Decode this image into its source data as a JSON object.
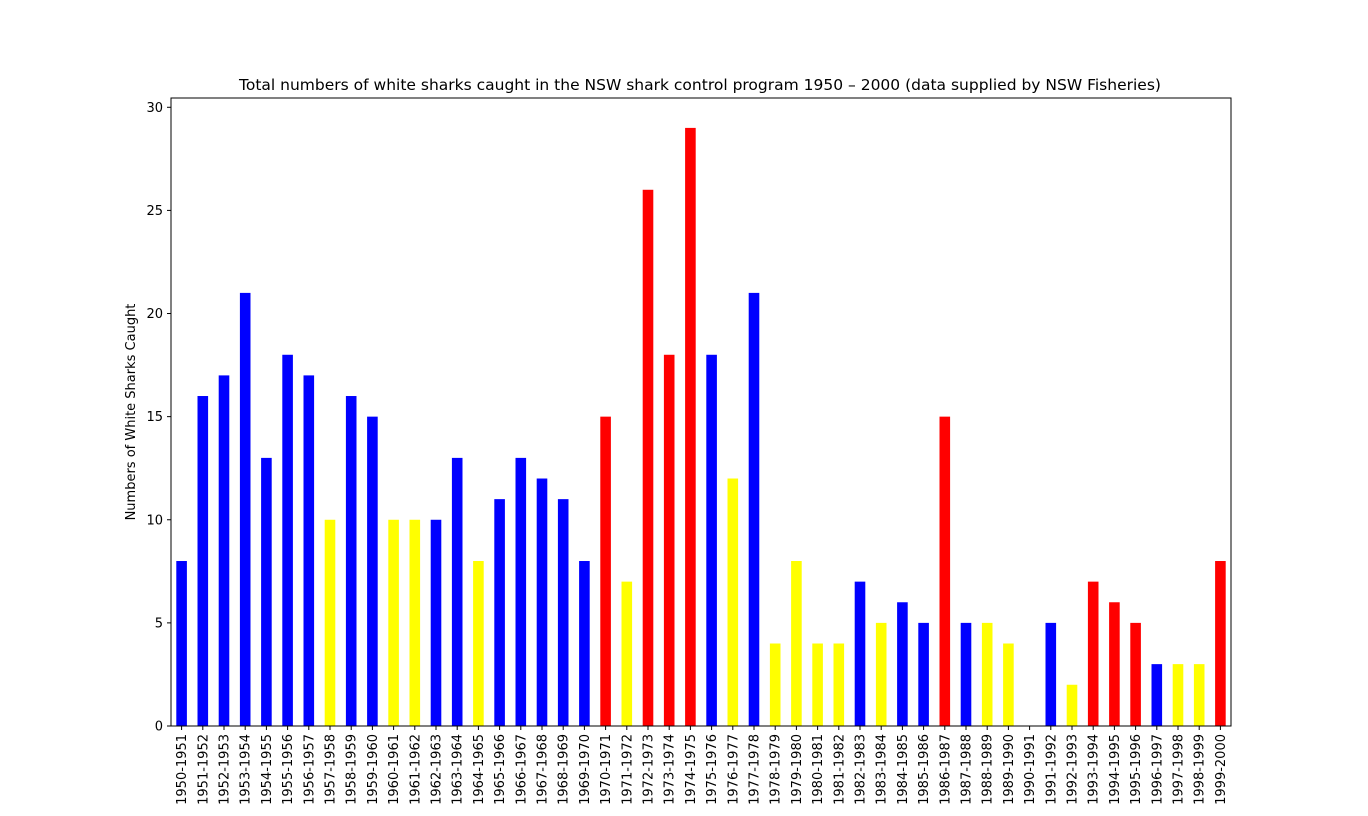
{
  "chart_data": {
    "type": "bar",
    "title": "Total numbers of white sharks caught in the NSW shark control program 1950 – 2000 (data supplied by NSW Fisheries)",
    "xlabel": "",
    "ylabel": "Numbers of White Sharks Caught",
    "ylim": [
      0,
      30.45
    ],
    "yticks": [
      "0",
      "5",
      "10",
      "15",
      "20",
      "25",
      "30"
    ],
    "grid": false,
    "categories": [
      "1950-1951",
      "1951-1952",
      "1952-1953",
      "1953-1954",
      "1954-1955",
      "1955-1956",
      "1956-1957",
      "1957-1958",
      "1958-1959",
      "1959-1960",
      "1960-1961",
      "1961-1962",
      "1962-1963",
      "1963-1964",
      "1964-1965",
      "1965-1966",
      "1966-1967",
      "1967-1968",
      "1968-1969",
      "1969-1970",
      "1970-1971",
      "1971-1972",
      "1972-1973",
      "1973-1974",
      "1974-1975",
      "1975-1976",
      "1976-1977",
      "1977-1978",
      "1978-1979",
      "1979-1980",
      "1980-1981",
      "1981-1982",
      "1982-1983",
      "1983-1984",
      "1984-1985",
      "1985-1986",
      "1986-1987",
      "1987-1988",
      "1988-1989",
      "1989-1990",
      "1990-1991",
      "1991-1992",
      "1992-1993",
      "1993-1994",
      "1994-1995",
      "1995-1996",
      "1996-1997",
      "1997-1998",
      "1998-1999",
      "1999-2000"
    ],
    "values": [
      8,
      16,
      17,
      21,
      13,
      18,
      17,
      10,
      16,
      15,
      10,
      10,
      10,
      13,
      8,
      11,
      13,
      12,
      11,
      8,
      15,
      7,
      26,
      18,
      29,
      18,
      12,
      21,
      4,
      8,
      4,
      4,
      7,
      5,
      6,
      5,
      15,
      5,
      5,
      4,
      0,
      5,
      2,
      7,
      6,
      5,
      3,
      3,
      3,
      8
    ],
    "bar_colors": [
      "#0000ff",
      "#0000ff",
      "#0000ff",
      "#0000ff",
      "#0000ff",
      "#0000ff",
      "#0000ff",
      "#ffff00",
      "#0000ff",
      "#0000ff",
      "#ffff00",
      "#ffff00",
      "#0000ff",
      "#0000ff",
      "#ffff00",
      "#0000ff",
      "#0000ff",
      "#0000ff",
      "#0000ff",
      "#0000ff",
      "#ff0000",
      "#ffff00",
      "#ff0000",
      "#ff0000",
      "#ff0000",
      "#0000ff",
      "#ffff00",
      "#0000ff",
      "#ffff00",
      "#ffff00",
      "#ffff00",
      "#ffff00",
      "#0000ff",
      "#ffff00",
      "#0000ff",
      "#0000ff",
      "#ff0000",
      "#0000ff",
      "#ffff00",
      "#ffff00",
      "#0000ff",
      "#0000ff",
      "#ffff00",
      "#ff0000",
      "#ff0000",
      "#ff0000",
      "#0000ff",
      "#ffff00",
      "#ffff00",
      "#ff0000"
    ]
  }
}
